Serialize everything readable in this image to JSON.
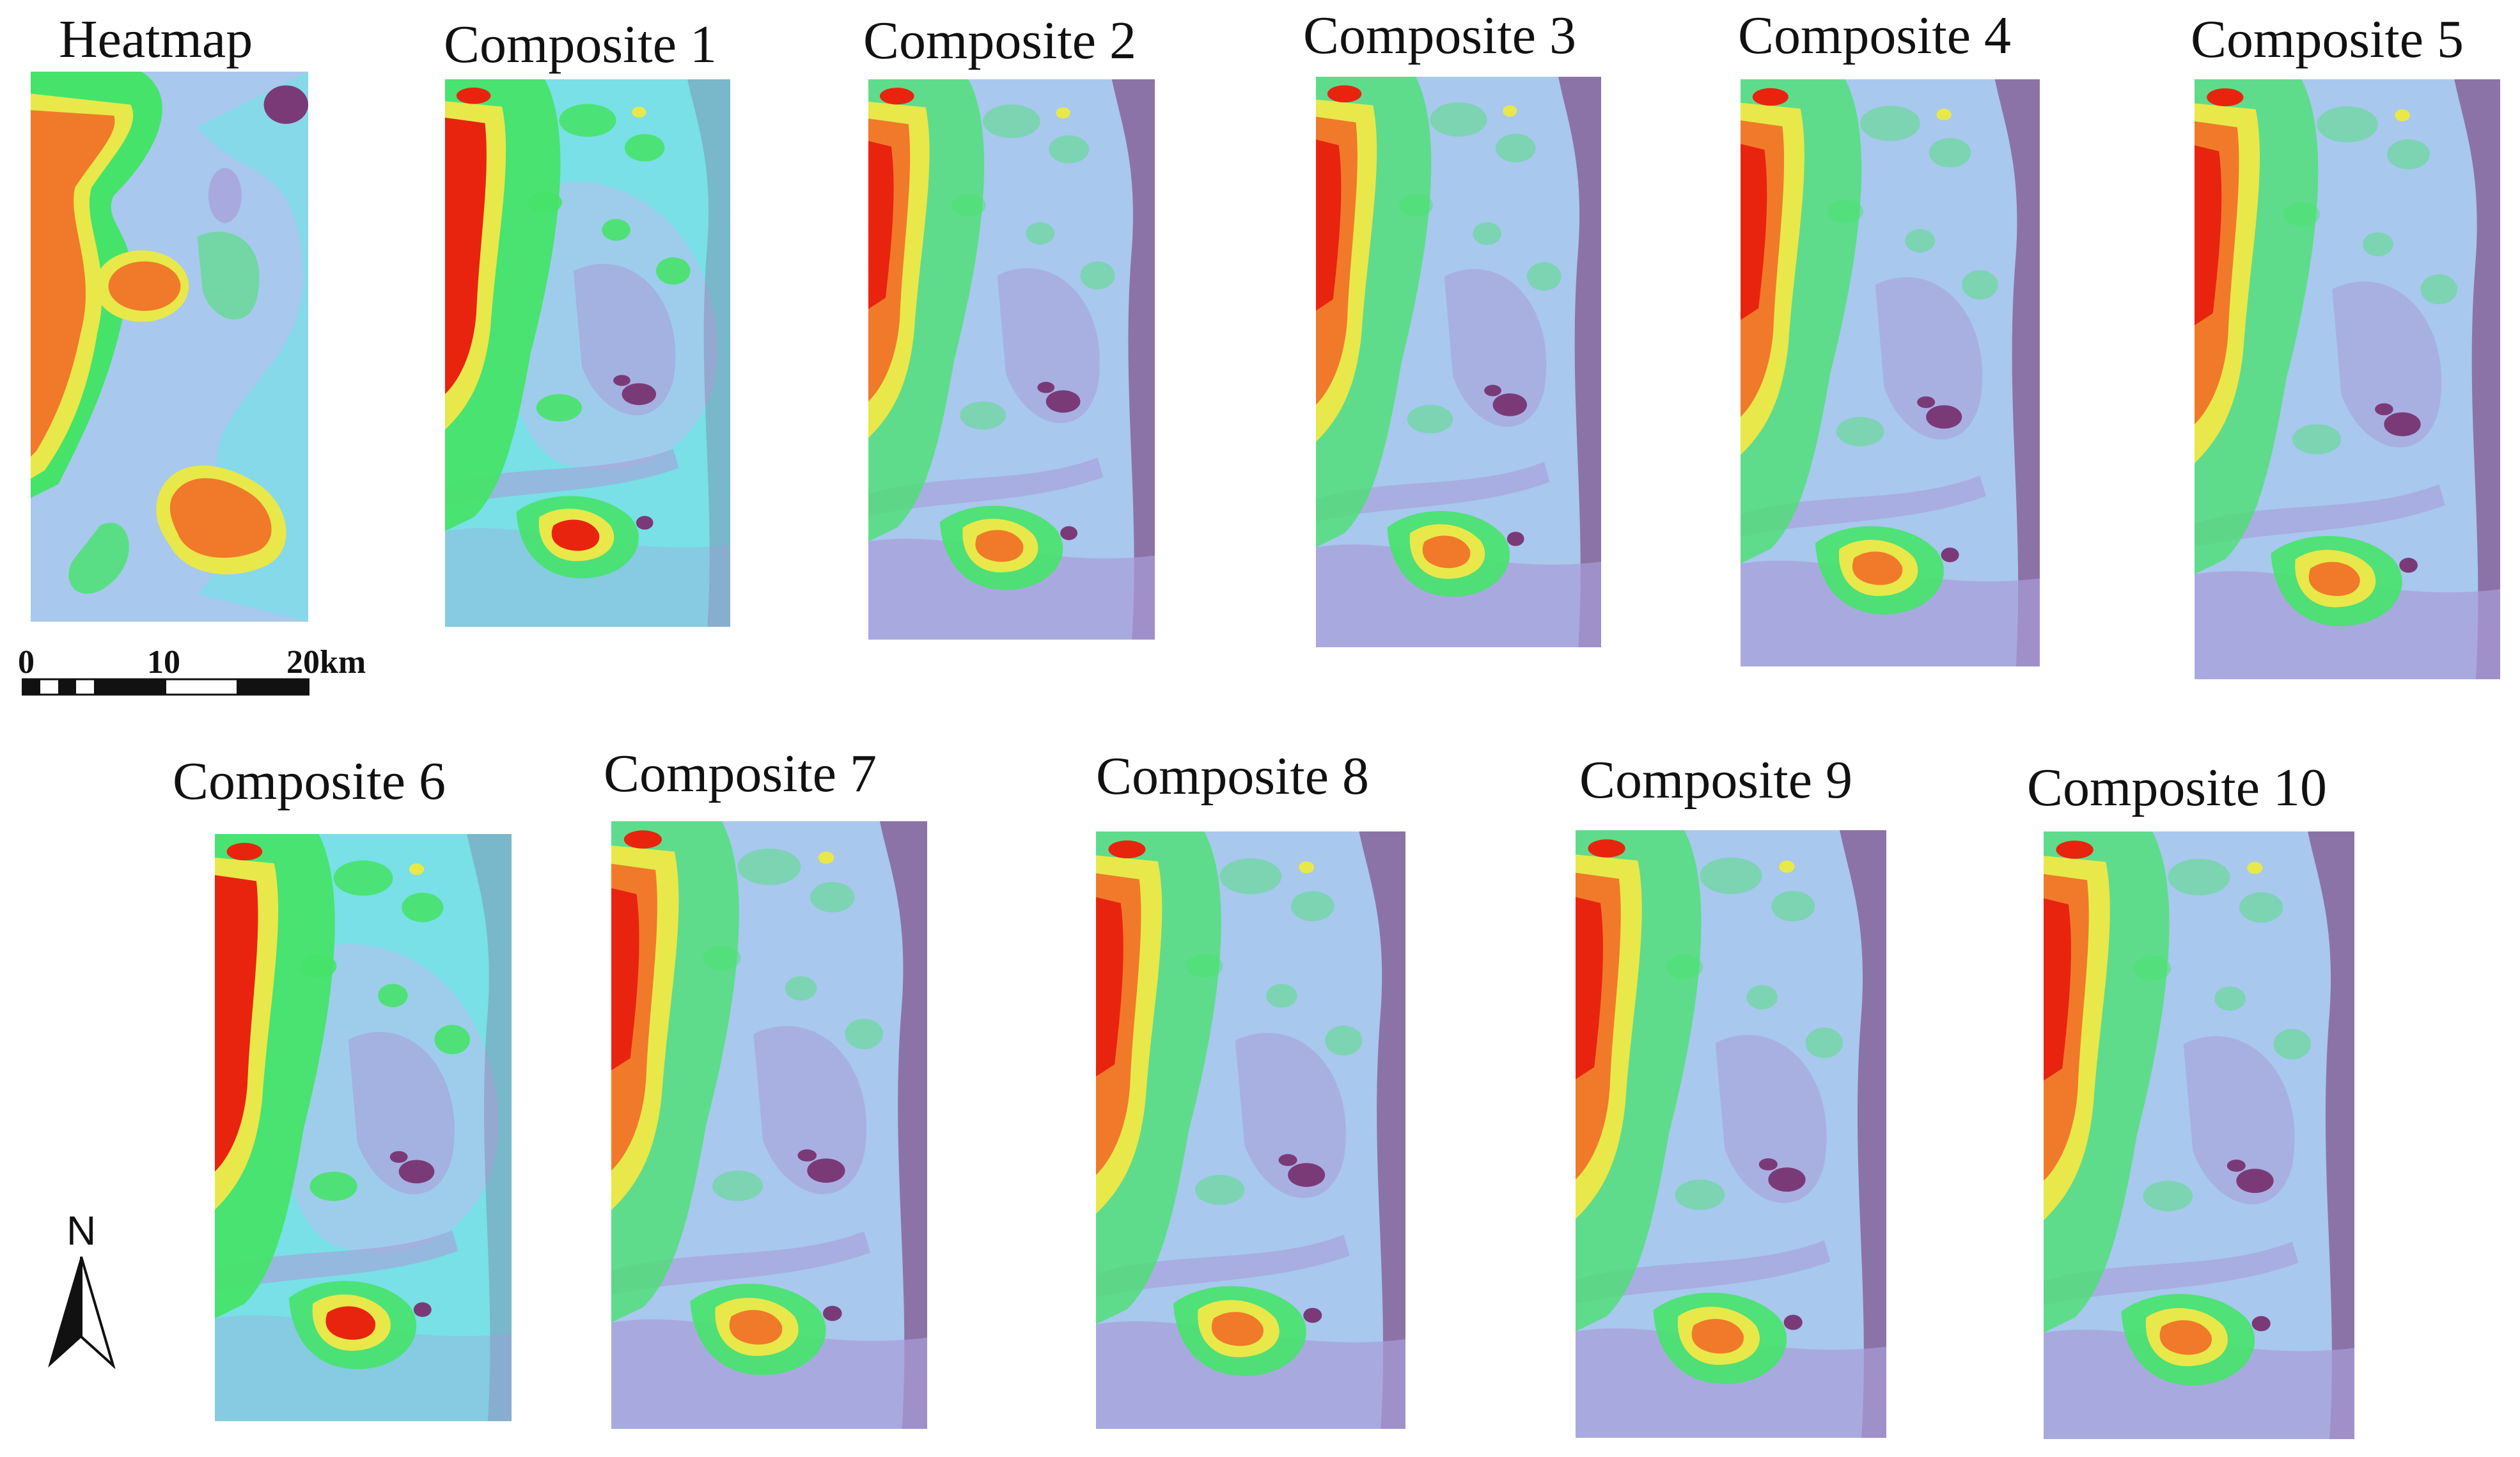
{
  "figure": {
    "panels": [
      {
        "id": "heatmap",
        "title": "Heatmap"
      },
      {
        "id": "composite-1",
        "title": "Composite 1"
      },
      {
        "id": "composite-2",
        "title": "Composite 2"
      },
      {
        "id": "composite-3",
        "title": "Composite 3"
      },
      {
        "id": "composite-4",
        "title": "Composite 4"
      },
      {
        "id": "composite-5",
        "title": "Composite 5"
      },
      {
        "id": "composite-6",
        "title": "Composite 6"
      },
      {
        "id": "composite-7",
        "title": "Composite 7"
      },
      {
        "id": "composite-8",
        "title": "Composite 8"
      },
      {
        "id": "composite-9",
        "title": "Composite 9"
      },
      {
        "id": "composite-10",
        "title": "Composite 10"
      }
    ],
    "scale_bar": {
      "labels": [
        "0",
        "10",
        "20km"
      ]
    },
    "north_arrow": {
      "label": "N"
    },
    "colors": {
      "red": "#e8240f",
      "orange": "#f07a2a",
      "yellow": "#e8e84a",
      "green": "#46e36a",
      "cyan": "#78e0e6",
      "light_blue": "#a8c8ee",
      "lavender": "#a89cd8",
      "purple": "#7a3a78"
    }
  }
}
